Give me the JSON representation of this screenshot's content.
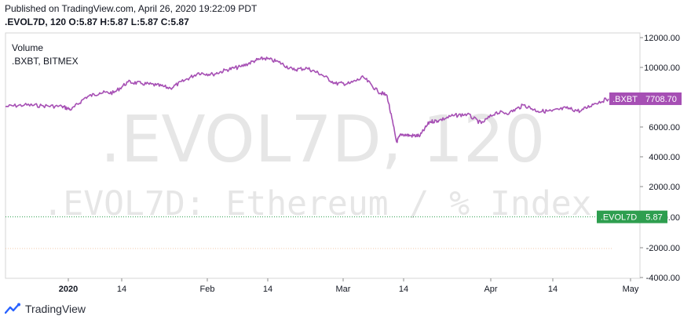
{
  "header": {
    "published": "Published on TradingView.com, April 26, 2020 19:22:09 PDT",
    "ohlc": ".EVOL7D, 120 O:5.87 H:5.87 L:5.87 C:5.87"
  },
  "footer": {
    "brand": "TradingView"
  },
  "colors": {
    "bxbt": "#a64fb4",
    "evol": "#2e9e4f",
    "grid": "#e9e9ea",
    "axis": "#8a8a8a",
    "watermark": "#e6e6e6"
  },
  "chart_data": {
    "type": "line",
    "watermark": {
      "line1": ".EVOL7D, 120",
      "line2": ".EVOL7D: Ethereum / % Index"
    },
    "legend": [
      "Volume",
      ".BXBT, BITMEX"
    ],
    "x_ticks": [
      "2020",
      "14",
      "Feb",
      "14",
      "Mar",
      "14",
      "Apr",
      "14",
      "May"
    ],
    "y_ticks": [
      "12000.00",
      "10000.00",
      "8000.00",
      "6000.00",
      "4000.00",
      "2000.00",
      "0.00",
      "-2000.00",
      "-4000.00"
    ],
    "ylim": [
      -4000,
      12000
    ],
    "series": [
      {
        "name": ".BXBT",
        "last": "7708.70",
        "x": [
          "2019-12-20",
          "2019-12-24",
          "2019-12-28",
          "2020-01-01",
          "2020-01-03",
          "2020-01-06",
          "2020-01-09",
          "2020-01-12",
          "2020-01-15",
          "2020-01-18",
          "2020-01-21",
          "2020-01-24",
          "2020-01-27",
          "2020-01-30",
          "2020-02-02",
          "2020-02-05",
          "2020-02-08",
          "2020-02-11",
          "2020-02-13",
          "2020-02-16",
          "2020-02-19",
          "2020-02-22",
          "2020-02-25",
          "2020-02-28",
          "2020-03-02",
          "2020-03-05",
          "2020-03-08",
          "2020-03-10",
          "2020-03-12",
          "2020-03-13",
          "2020-03-15",
          "2020-03-17",
          "2020-03-19",
          "2020-03-21",
          "2020-03-24",
          "2020-03-27",
          "2020-03-30",
          "2020-04-02",
          "2020-04-05",
          "2020-04-08",
          "2020-04-11",
          "2020-04-14",
          "2020-04-17",
          "2020-04-20",
          "2020-04-23",
          "2020-04-26"
        ],
        "y": [
          7200,
          7300,
          7250,
          7200,
          7000,
          7800,
          8100,
          8100,
          8800,
          8700,
          8600,
          8400,
          8900,
          9400,
          9300,
          9600,
          9800,
          10200,
          10350,
          10100,
          9600,
          9700,
          9300,
          8700,
          8700,
          9100,
          8200,
          7900,
          4900,
          5400,
          5300,
          5300,
          6200,
          6300,
          6600,
          6700,
          6100,
          6800,
          6800,
          7300,
          6900,
          6900,
          7100,
          6900,
          7400,
          7708.7
        ]
      },
      {
        "name": ".EVOL7D",
        "last": "5.87"
      }
    ]
  }
}
